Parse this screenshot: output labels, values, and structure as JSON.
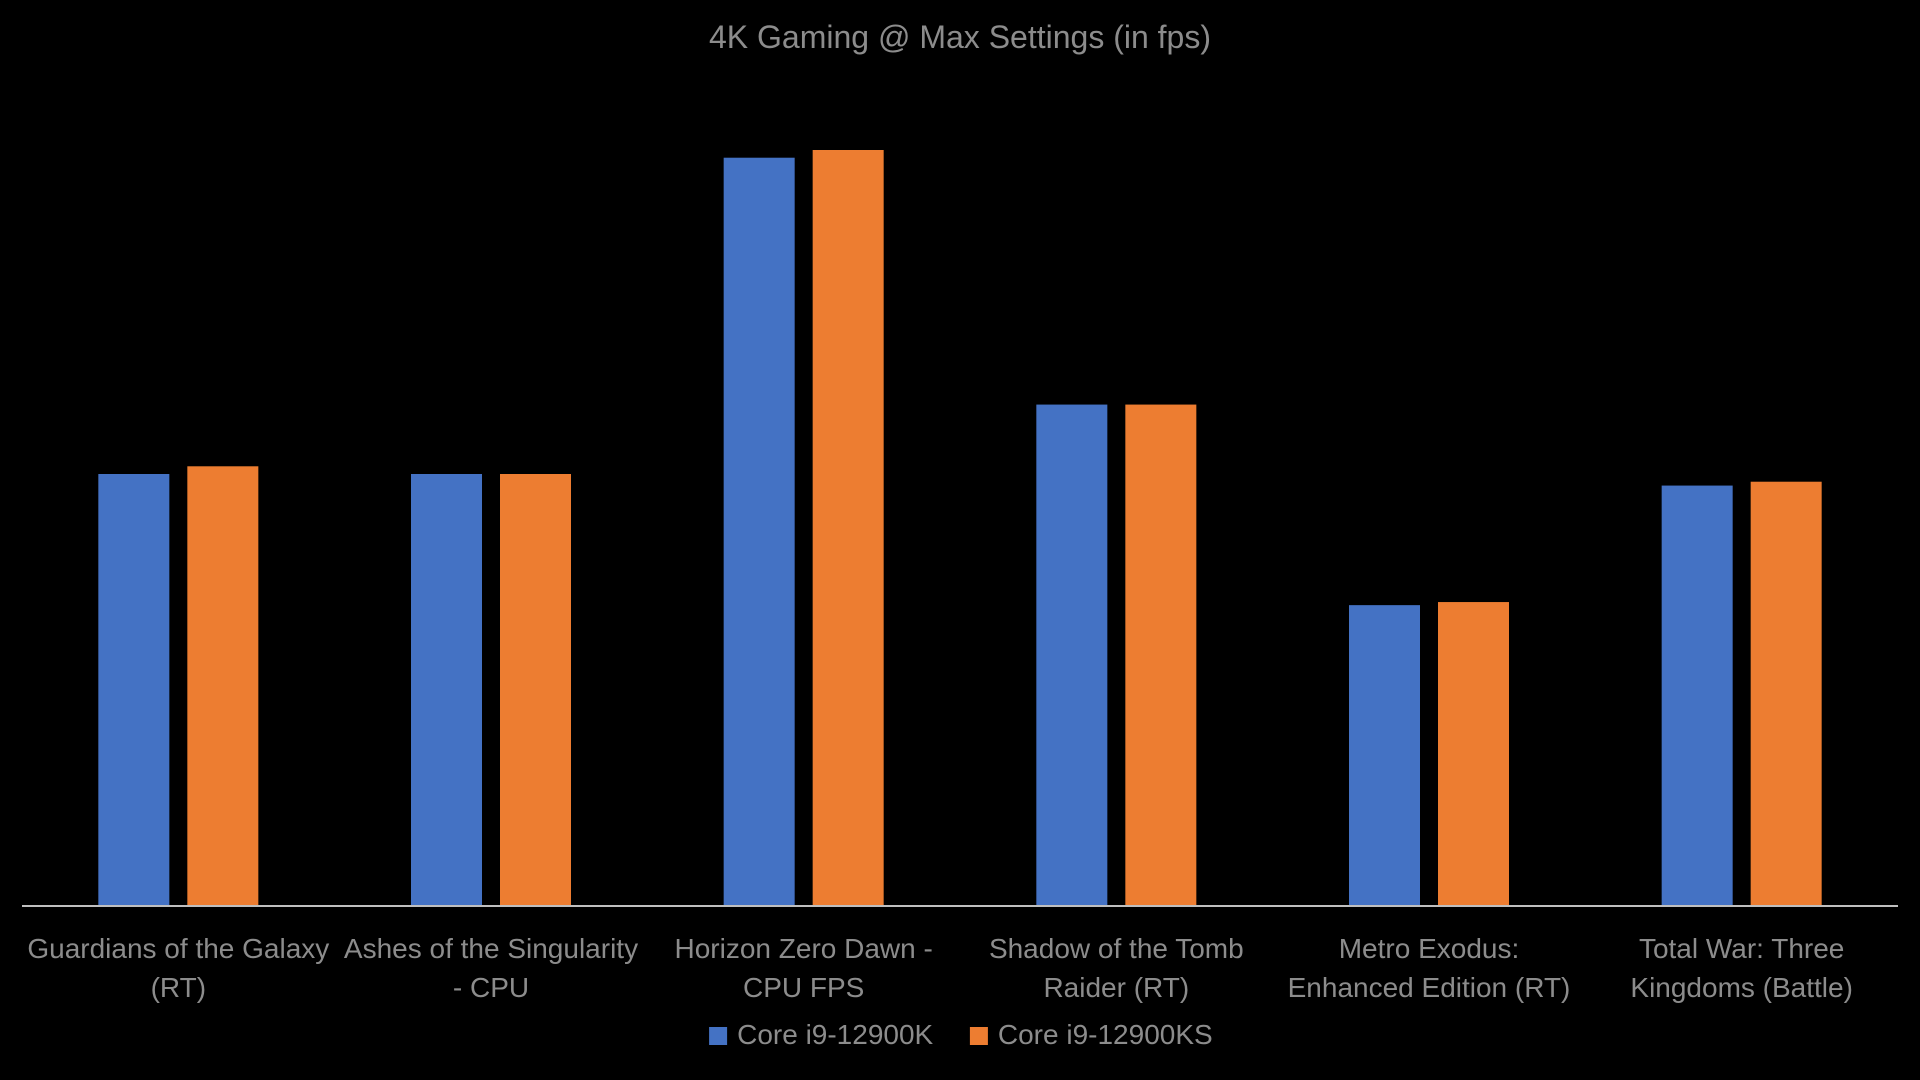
{
  "chart_data": {
    "type": "bar",
    "title": "4K Gaming @ Max Settings (in fps)",
    "xlabel": "",
    "ylabel": "",
    "ylim": [
      0,
      98
    ],
    "grid": false,
    "legend_position": "bottom",
    "categories": [
      "Guardians of the Galaxy (RT)",
      "Ashes of the Singularity - CPU",
      "Horizon Zero Dawn - CPU FPS",
      "Shadow of the Tomb Raider (RT)",
      "Metro Exodus: Enhanced Edition (RT)",
      "Total War: Three Kingdoms (Battle)"
    ],
    "category_label_lines": [
      [
        "Guardians of the Galaxy",
        "(RT)"
      ],
      [
        "Ashes of the Singularity",
        "- CPU"
      ],
      [
        "Horizon Zero Dawn -",
        "CPU FPS"
      ],
      [
        "Shadow of the Tomb",
        "Raider (RT)"
      ],
      [
        "Metro Exodus:",
        "Enhanced Edition (RT)"
      ],
      [
        "Total War: Three",
        "Kingdoms (Battle)"
      ]
    ],
    "series": [
      {
        "name": "Core i9-12900K",
        "color": "#4472C4",
        "values": [
          56,
          56,
          97,
          65,
          39,
          54.5
        ]
      },
      {
        "name": "Core i9-12900KS",
        "color": "#ED7D31",
        "values": [
          57,
          56,
          98,
          65,
          39.4,
          55
        ]
      }
    ]
  },
  "colors": {
    "background": "#000000",
    "text": "#8c8c8c",
    "axis_line": "#bfbfbf"
  }
}
